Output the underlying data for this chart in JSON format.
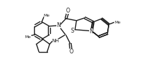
{
  "bg_color": "#ffffff",
  "line_color": "#1a1a1a",
  "lw": 1.0,
  "figsize": [
    2.27,
    1.01
  ],
  "dpi": 100,
  "xlim": [
    0,
    227
  ],
  "ylim": [
    0,
    101
  ]
}
